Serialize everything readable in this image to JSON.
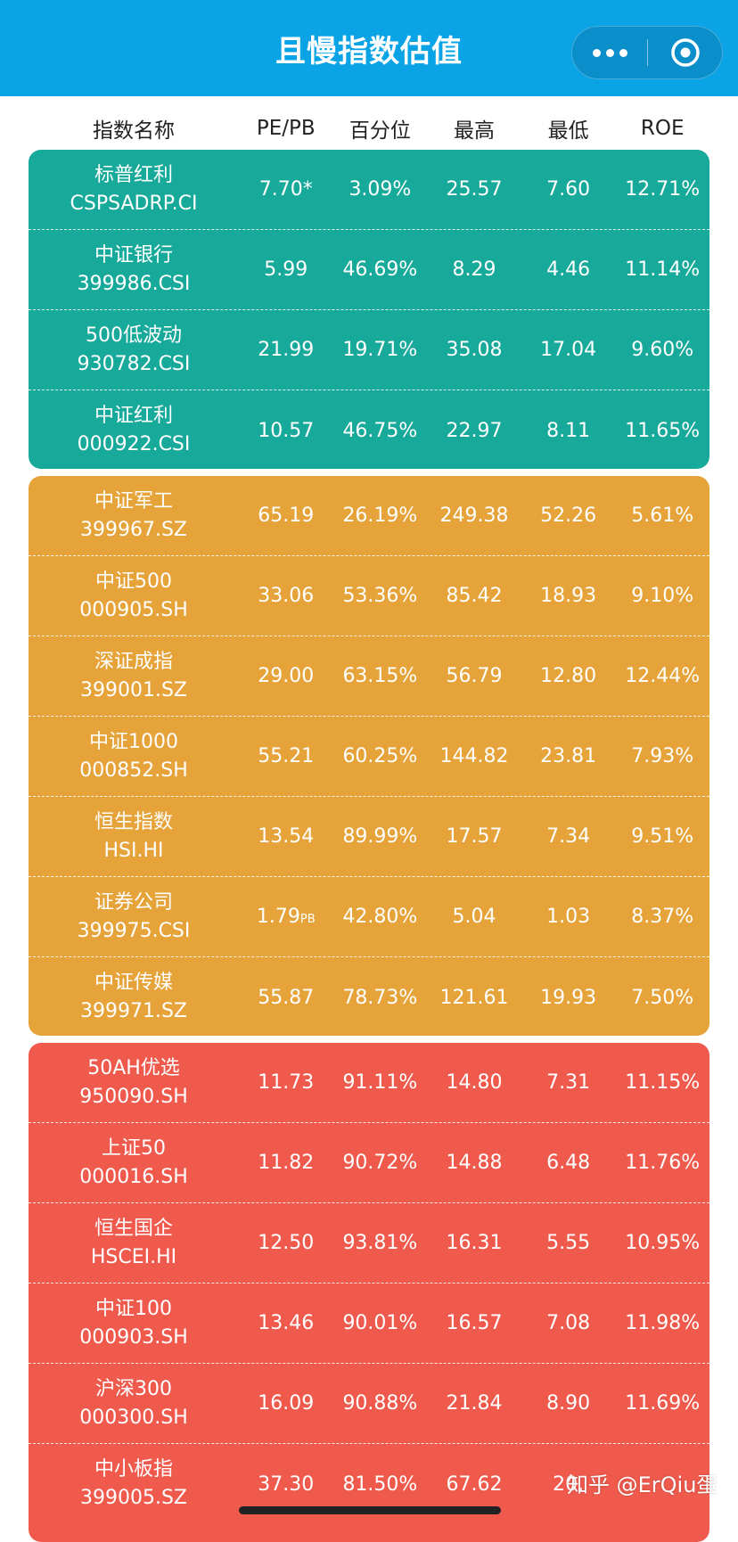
{
  "nav": {
    "title": "且慢指数估值"
  },
  "columns": [
    "指数名称",
    "PE/PB",
    "百分位",
    "最高",
    "最低",
    "ROE"
  ],
  "groups": [
    {
      "color": "#17a99a",
      "rows": [
        {
          "name": "标普红利",
          "code": "CSPSADRP.CI",
          "pe": "7.70*",
          "pct": "3.09%",
          "high": "25.57",
          "low": "7.60",
          "roe": "12.71%"
        },
        {
          "name": "中证银行",
          "code": "399986.CSI",
          "pe": "5.99",
          "pct": "46.69%",
          "high": "8.29",
          "low": "4.46",
          "roe": "11.14%"
        },
        {
          "name": "500低波动",
          "code": "930782.CSI",
          "pe": "21.99",
          "pct": "19.71%",
          "high": "35.08",
          "low": "17.04",
          "roe": "9.60%"
        },
        {
          "name": "中证红利",
          "code": "000922.CSI",
          "pe": "10.57",
          "pct": "46.75%",
          "high": "22.97",
          "low": "8.11",
          "roe": "11.65%"
        }
      ]
    },
    {
      "color": "#e6a339",
      "rows": [
        {
          "name": "中证军工",
          "code": "399967.SZ",
          "pe": "65.19",
          "pct": "26.19%",
          "high": "249.38",
          "low": "52.26",
          "roe": "5.61%"
        },
        {
          "name": "中证500",
          "code": "000905.SH",
          "pe": "33.06",
          "pct": "53.36%",
          "high": "85.42",
          "low": "18.93",
          "roe": "9.10%"
        },
        {
          "name": "深证成指",
          "code": "399001.SZ",
          "pe": "29.00",
          "pct": "63.15%",
          "high": "56.79",
          "low": "12.80",
          "roe": "12.44%"
        },
        {
          "name": "中证1000",
          "code": "000852.SH",
          "pe": "55.21",
          "pct": "60.25%",
          "high": "144.82",
          "low": "23.81",
          "roe": "7.93%"
        },
        {
          "name": "恒生指数",
          "code": "HSI.HI",
          "pe": "13.54",
          "pct": "89.99%",
          "high": "17.57",
          "low": "7.34",
          "roe": "9.51%"
        },
        {
          "name": "证券公司",
          "code": "399975.CSI",
          "pe": "1.79",
          "pe_suffix": "PB",
          "pct": "42.80%",
          "high": "5.04",
          "low": "1.03",
          "roe": "8.37%"
        },
        {
          "name": "中证传媒",
          "code": "399971.SZ",
          "pe": "55.87",
          "pct": "78.73%",
          "high": "121.61",
          "low": "19.93",
          "roe": "7.50%"
        }
      ]
    },
    {
      "color": "#ef5a4d",
      "rows": [
        {
          "name": "50AH优选",
          "code": "950090.SH",
          "pe": "11.73",
          "pct": "91.11%",
          "high": "14.80",
          "low": "7.31",
          "roe": "11.15%"
        },
        {
          "name": "上证50",
          "code": "000016.SH",
          "pe": "11.82",
          "pct": "90.72%",
          "high": "14.88",
          "low": "6.48",
          "roe": "11.76%"
        },
        {
          "name": "恒生国企",
          "code": "HSCEI.HI",
          "pe": "12.50",
          "pct": "93.81%",
          "high": "16.31",
          "low": "5.55",
          "roe": "10.95%"
        },
        {
          "name": "中证100",
          "code": "000903.SH",
          "pe": "13.46",
          "pct": "90.01%",
          "high": "16.57",
          "low": "7.08",
          "roe": "11.98%"
        },
        {
          "name": "沪深300",
          "code": "000300.SH",
          "pe": "16.09",
          "pct": "90.88%",
          "high": "21.84",
          "low": "8.90",
          "roe": "11.69%"
        },
        {
          "name": "中小板指",
          "code": "399005.SZ",
          "pe": "37.30",
          "pct": "81.50%",
          "high": "67.62",
          "low": "20.",
          "roe": ""
        }
      ]
    }
  ],
  "watermark": "知乎 @ErQiu蛋"
}
